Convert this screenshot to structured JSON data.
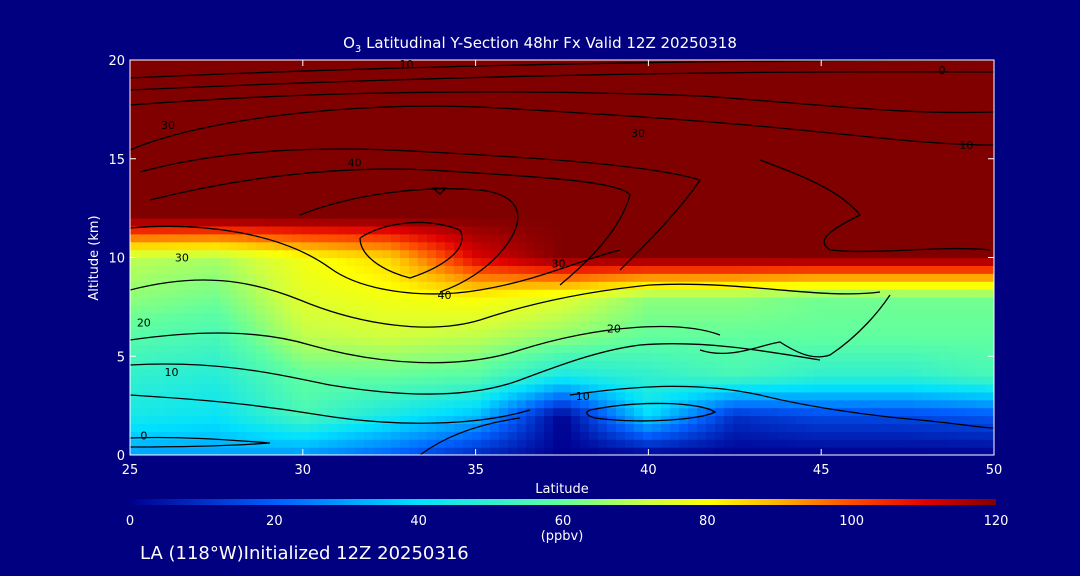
{
  "title": {
    "species": "O",
    "species_sub": "3",
    "text": " Latitudinal Y-Section 48hr  Fx Valid 12Z 20250318"
  },
  "footer": "LA (118°W)Initialized 12Z 20250316",
  "colors": {
    "background": "#000080",
    "text": "#ffffff",
    "contour": "#000000"
  },
  "chart_data": {
    "type": "heatmap",
    "xlabel": "Latitude",
    "ylabel": "Altitude (km)",
    "xlim": [
      25,
      50
    ],
    "ylim": [
      0,
      20
    ],
    "xticks": [
      25,
      30,
      35,
      40,
      45,
      50
    ],
    "yticks": [
      0,
      5,
      10,
      15,
      20
    ],
    "colorbar": {
      "label": "(ppbv)",
      "range": [
        0,
        120
      ],
      "ticks": [
        0,
        20,
        40,
        60,
        80,
        100,
        120
      ]
    },
    "contour_labels": [
      {
        "text": "10",
        "lat": 33.0,
        "alt": 19.8
      },
      {
        "text": "0",
        "lat": 48.5,
        "alt": 19.5
      },
      {
        "text": "30",
        "lat": 26.1,
        "alt": 16.7
      },
      {
        "text": "30",
        "lat": 39.7,
        "alt": 16.3
      },
      {
        "text": "10",
        "lat": 49.2,
        "alt": 15.7
      },
      {
        "text": "40",
        "lat": 31.5,
        "alt": 14.8
      },
      {
        "text": "30",
        "lat": 26.5,
        "alt": 10.0
      },
      {
        "text": "30",
        "lat": 37.4,
        "alt": 9.7
      },
      {
        "text": "40",
        "lat": 34.1,
        "alt": 8.1
      },
      {
        "text": "20",
        "lat": 25.4,
        "alt": 6.7
      },
      {
        "text": "20",
        "lat": 39.0,
        "alt": 6.4
      },
      {
        "text": "10",
        "lat": 26.2,
        "alt": 4.2
      },
      {
        "text": "10",
        "lat": 38.1,
        "alt": 3.0
      },
      {
        "text": "0",
        "lat": 25.4,
        "alt": 1.0
      }
    ],
    "data_grid": {
      "lats": [
        25,
        27.5,
        30,
        32.5,
        35,
        37.5,
        40,
        42.5,
        45,
        47.5,
        50
      ],
      "alts": [
        0,
        2,
        4,
        6,
        8,
        10,
        12,
        14,
        16,
        18,
        20
      ],
      "values": [
        [
          30,
          30,
          28,
          20,
          8,
          0,
          0,
          0,
          0,
          0,
          0
        ],
        [
          45,
          42,
          55,
          45,
          35,
          0,
          40,
          10,
          15,
          15,
          18
        ],
        [
          50,
          48,
          60,
          60,
          58,
          45,
          50,
          55,
          50,
          50,
          55
        ],
        [
          58,
          55,
          70,
          72,
          70,
          65,
          60,
          60,
          60,
          60,
          60
        ],
        [
          65,
          62,
          75,
          78,
          80,
          75,
          65,
          65,
          62,
          62,
          62
        ],
        [
          70,
          68,
          78,
          85,
          110,
          120,
          120,
          120,
          120,
          120,
          120
        ],
        [
          120,
          120,
          120,
          120,
          120,
          120,
          120,
          120,
          120,
          120,
          120
        ],
        [
          120,
          120,
          120,
          120,
          120,
          120,
          120,
          120,
          120,
          120,
          120
        ],
        [
          120,
          120,
          120,
          120,
          120,
          120,
          120,
          120,
          120,
          120,
          120
        ],
        [
          120,
          120,
          120,
          120,
          120,
          120,
          120,
          120,
          120,
          120,
          120
        ],
        [
          120,
          120,
          120,
          120,
          120,
          120,
          120,
          120,
          120,
          120,
          120
        ]
      ]
    }
  }
}
